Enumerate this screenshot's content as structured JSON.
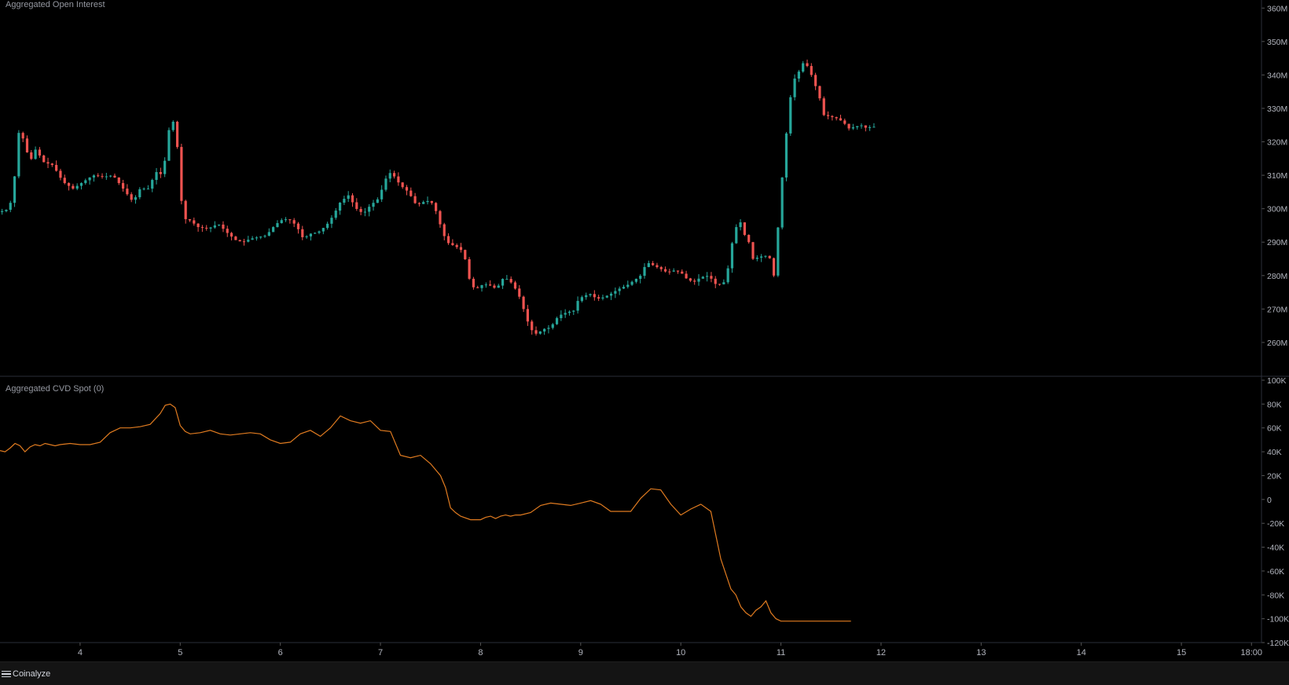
{
  "panes": {
    "oi_title": "Aggregated Open Interest",
    "cvd_title": "Aggregated CVD Spot (0)"
  },
  "footer": {
    "brand": "Coinalyze"
  },
  "colors": {
    "up": "#26a69a",
    "down": "#ef5350",
    "cvd_line": "#e07b20",
    "grid": "#2a2e39",
    "text": "#b2b5be",
    "background": "#000000"
  },
  "chart_data": [
    {
      "type": "candlestick",
      "title": "Aggregated Open Interest",
      "x_unit": "day",
      "xlim": [
        3.2,
        15.8
      ],
      "ylim": [
        252,
        361
      ],
      "y_ticks": [
        260,
        270,
        280,
        290,
        300,
        310,
        320,
        330,
        340,
        350,
        360
      ],
      "y_tick_labels": [
        "260M",
        "270M",
        "280M",
        "290M",
        "300M",
        "310M",
        "320M",
        "330M",
        "340M",
        "350M",
        "360M"
      ],
      "path": [
        [
          3.2,
          299.0
        ],
        [
          3.28,
          299.5
        ],
        [
          3.35,
          303.0
        ],
        [
          3.4,
          323.0
        ],
        [
          3.45,
          321.0
        ],
        [
          3.52,
          314.0
        ],
        [
          3.58,
          318.0
        ],
        [
          3.65,
          314.0
        ],
        [
          3.75,
          313.0
        ],
        [
          3.85,
          308.0
        ],
        [
          3.95,
          306.0
        ],
        [
          4.05,
          308.0
        ],
        [
          4.15,
          310.0
        ],
        [
          4.25,
          309.5
        ],
        [
          4.35,
          310.0
        ],
        [
          4.45,
          306.0
        ],
        [
          4.55,
          302.0
        ],
        [
          4.62,
          306.0
        ],
        [
          4.7,
          306.0
        ],
        [
          4.78,
          311.0
        ],
        [
          4.85,
          310.0
        ],
        [
          4.9,
          323.0
        ],
        [
          4.95,
          326.0
        ],
        [
          4.98,
          324.0
        ],
        [
          5.02,
          305.0
        ],
        [
          5.06,
          297.0
        ],
        [
          5.12,
          296.5
        ],
        [
          5.2,
          294.5
        ],
        [
          5.3,
          294.0
        ],
        [
          5.4,
          295.5
        ],
        [
          5.5,
          292.5
        ],
        [
          5.58,
          290.5
        ],
        [
          5.65,
          290.0
        ],
        [
          5.72,
          291.0
        ],
        [
          5.8,
          291.5
        ],
        [
          5.88,
          292.0
        ],
        [
          5.95,
          294.5
        ],
        [
          6.02,
          296.5
        ],
        [
          6.1,
          297.0
        ],
        [
          6.18,
          295.0
        ],
        [
          6.25,
          291.0
        ],
        [
          6.32,
          292.5
        ],
        [
          6.4,
          293.0
        ],
        [
          6.48,
          295.0
        ],
        [
          6.55,
          298.0
        ],
        [
          6.62,
          302.0
        ],
        [
          6.7,
          304.0
        ],
        [
          6.78,
          300.0
        ],
        [
          6.85,
          298.5
        ],
        [
          6.92,
          301.0
        ],
        [
          7.0,
          303.0
        ],
        [
          7.05,
          307.0
        ],
        [
          7.1,
          311.0
        ],
        [
          7.15,
          310.0
        ],
        [
          7.22,
          307.0
        ],
        [
          7.3,
          305.0
        ],
        [
          7.38,
          301.0
        ],
        [
          7.45,
          302.0
        ],
        [
          7.52,
          302.5
        ],
        [
          7.58,
          299.0
        ],
        [
          7.62,
          295.0
        ],
        [
          7.68,
          290.0
        ],
        [
          7.75,
          289.0
        ],
        [
          7.82,
          288.0
        ],
        [
          7.88,
          284.0
        ],
        [
          7.92,
          277.0
        ],
        [
          7.98,
          276.0
        ],
        [
          8.05,
          277.5
        ],
        [
          8.12,
          277.0
        ],
        [
          8.18,
          276.0
        ],
        [
          8.24,
          279.0
        ],
        [
          8.3,
          279.0
        ],
        [
          8.36,
          276.5
        ],
        [
          8.42,
          273.0
        ],
        [
          8.47,
          268.0
        ],
        [
          8.52,
          264.0
        ],
        [
          8.58,
          262.5
        ],
        [
          8.65,
          264.0
        ],
        [
          8.72,
          264.5
        ],
        [
          8.8,
          268.0
        ],
        [
          8.88,
          269.0
        ],
        [
          8.95,
          269.5
        ],
        [
          9.0,
          273.0
        ],
        [
          9.06,
          274.0
        ],
        [
          9.12,
          274.5
        ],
        [
          9.18,
          273.0
        ],
        [
          9.25,
          273.5
        ],
        [
          9.32,
          274.5
        ],
        [
          9.4,
          276.0
        ],
        [
          9.48,
          277.0
        ],
        [
          9.55,
          278.5
        ],
        [
          9.62,
          280.0
        ],
        [
          9.68,
          284.0
        ],
        [
          9.75,
          283.0
        ],
        [
          9.82,
          282.0
        ],
        [
          9.88,
          281.0
        ],
        [
          9.95,
          281.5
        ],
        [
          10.02,
          281.0
        ],
        [
          10.08,
          279.0
        ],
        [
          10.15,
          278.0
        ],
        [
          10.22,
          279.5
        ],
        [
          10.3,
          280.0
        ],
        [
          10.38,
          277.0
        ],
        [
          10.45,
          278.0
        ],
        [
          10.5,
          283.0
        ],
        [
          10.54,
          291.0
        ],
        [
          10.58,
          295.0
        ],
        [
          10.62,
          296.0
        ],
        [
          10.66,
          292.0
        ],
        [
          10.7,
          290.0
        ],
        [
          10.74,
          285.0
        ],
        [
          10.8,
          285.5
        ],
        [
          10.86,
          286.0
        ],
        [
          10.92,
          285.0
        ],
        [
          10.95,
          280.0
        ],
        [
          10.98,
          290.0
        ],
        [
          11.02,
          305.0
        ],
        [
          11.06,
          318.0
        ],
        [
          11.1,
          330.0
        ],
        [
          11.14,
          338.0
        ],
        [
          11.2,
          341.0
        ],
        [
          11.25,
          344.0
        ],
        [
          11.3,
          342.0
        ],
        [
          11.35,
          338.0
        ],
        [
          11.4,
          334.0
        ],
        [
          11.45,
          328.0
        ],
        [
          11.52,
          327.5
        ],
        [
          11.58,
          327.0
        ],
        [
          11.64,
          326.0
        ],
        [
          11.7,
          324.0
        ],
        [
          11.76,
          324.5
        ],
        [
          11.82,
          325.0
        ],
        [
          11.88,
          324.0
        ],
        [
          11.92,
          324.5
        ]
      ]
    },
    {
      "type": "line",
      "title": "Aggregated CVD Spot (0)",
      "x_unit": "day",
      "xlim": [
        3.2,
        15.8
      ],
      "ylim": [
        -120000,
        100000
      ],
      "y_ticks": [
        -120000,
        -100000,
        -80000,
        -60000,
        -40000,
        -20000,
        0,
        20000,
        40000,
        60000,
        80000,
        100000
      ],
      "y_tick_labels": [
        "-120K",
        "-100K",
        "-80K",
        "-60K",
        "-40K",
        "-20K",
        "0",
        "20K",
        "40K",
        "60K",
        "80K",
        "100K"
      ],
      "x_ticks": [
        4,
        5,
        6,
        7,
        8,
        9,
        10,
        11,
        12,
        13,
        14,
        15,
        15.7
      ],
      "x_tick_labels": [
        "4",
        "5",
        "6",
        "7",
        "8",
        "9",
        "10",
        "11",
        "12",
        "13",
        "14",
        "15",
        "18:00"
      ],
      "x": [
        3.2,
        3.25,
        3.3,
        3.35,
        3.4,
        3.45,
        3.5,
        3.55,
        3.6,
        3.65,
        3.7,
        3.75,
        3.8,
        3.9,
        4.0,
        4.1,
        4.2,
        4.3,
        4.4,
        4.5,
        4.6,
        4.7,
        4.8,
        4.85,
        4.9,
        4.95,
        5.0,
        5.05,
        5.1,
        5.2,
        5.3,
        5.4,
        5.5,
        5.6,
        5.7,
        5.8,
        5.9,
        6.0,
        6.1,
        6.2,
        6.3,
        6.4,
        6.5,
        6.6,
        6.7,
        6.8,
        6.9,
        7.0,
        7.1,
        7.2,
        7.3,
        7.4,
        7.5,
        7.6,
        7.65,
        7.7,
        7.75,
        7.8,
        7.9,
        8.0,
        8.05,
        8.1,
        8.15,
        8.2,
        8.25,
        8.3,
        8.35,
        8.4,
        8.5,
        8.6,
        8.7,
        8.8,
        8.9,
        9.0,
        9.1,
        9.2,
        9.3,
        9.4,
        9.5,
        9.6,
        9.7,
        9.8,
        9.9,
        10.0,
        10.1,
        10.2,
        10.3,
        10.4,
        10.5,
        10.55,
        10.6,
        10.65,
        10.7,
        10.75,
        10.8,
        10.85,
        10.9,
        10.95,
        11.0,
        11.02,
        11.05,
        11.1,
        11.15,
        11.2,
        11.25,
        11.3,
        11.35,
        11.4,
        11.45,
        11.5,
        11.55,
        11.6,
        11.65,
        11.7
      ],
      "y": [
        41000,
        40000,
        43000,
        47000,
        45000,
        40000,
        44000,
        46000,
        45000,
        47000,
        46000,
        45000,
        46000,
        47000,
        46000,
        46000,
        48000,
        56000,
        60000,
        60000,
        61000,
        63000,
        72000,
        79000,
        80000,
        77000,
        62000,
        57000,
        55000,
        56000,
        58000,
        55000,
        54000,
        55000,
        56000,
        55000,
        50000,
        47000,
        48000,
        55000,
        58000,
        53000,
        60000,
        70000,
        66000,
        64000,
        66000,
        58000,
        57000,
        37000,
        35000,
        37000,
        30000,
        20000,
        10000,
        -7000,
        -11000,
        -14000,
        -17000,
        -17000,
        -15000,
        -14000,
        -16000,
        -14000,
        -13000,
        -14000,
        -13000,
        -13000,
        -11000,
        -5000,
        -3000,
        -4000,
        -5000,
        -3000,
        -1000,
        -4000,
        -10000,
        -10000,
        -10000,
        1000,
        9000,
        8000,
        -4000,
        -13000,
        -8000,
        -4000,
        -10000,
        -50000,
        -75000,
        -80000,
        -90000,
        -95000,
        -98000,
        -93000,
        -90000,
        -85000,
        -95000,
        -100000,
        -102000,
        -102000,
        -102000,
        -102000,
        -102000,
        -102000,
        -102000,
        -102000,
        -102000,
        -102000,
        -102000,
        -102000,
        -102000,
        -102000,
        -102000,
        -102000
      ]
    }
  ]
}
